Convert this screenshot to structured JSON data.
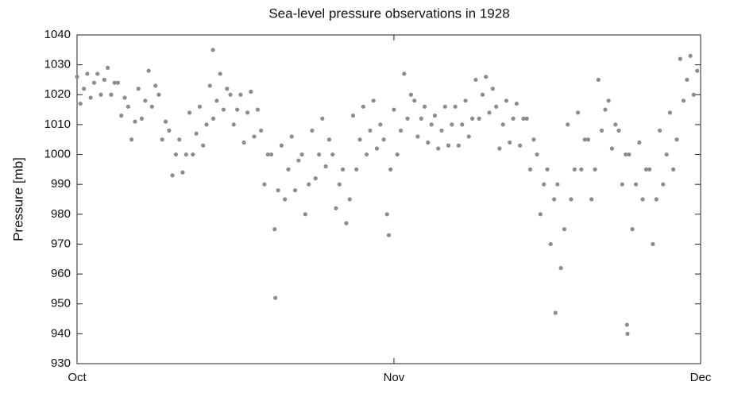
{
  "chart_data": {
    "type": "scatter",
    "title": "Sea-level pressure observations in 1928",
    "y_label": "Pressure [mb]",
    "color": "#8c8c8c",
    "grid": false,
    "xlim": [
      0,
      61
    ],
    "xticks": [
      {
        "value": 0,
        "label": "Oct"
      },
      {
        "value": 31,
        "label": "Nov"
      },
      {
        "value": 61,
        "label": "Dec"
      }
    ],
    "ylim": [
      930,
      1040
    ],
    "yticks": [
      930,
      940,
      950,
      960,
      970,
      980,
      990,
      1000,
      1010,
      1020,
      1030,
      1040
    ],
    "x": [
      0,
      0.33,
      0.67,
      1,
      1.33,
      1.67,
      2,
      2.33,
      2.67,
      3,
      3.33,
      3.67,
      4,
      4.33,
      4.67,
      5,
      5.33,
      5.67,
      6,
      6.33,
      6.67,
      7,
      7.33,
      7.67,
      8,
      8.33,
      8.67,
      9,
      9.33,
      9.67,
      10,
      10.33,
      10.67,
      11,
      11.33,
      11.67,
      12,
      12.33,
      12.67,
      13,
      13.33,
      13.67,
      14,
      14.33,
      14.67,
      15,
      15.33,
      15.67,
      16,
      16.33,
      16.67,
      17,
      17.33,
      17.67,
      18,
      18.33,
      18.67,
      19,
      19.33,
      19.67,
      20,
      20.33,
      20.67,
      21,
      21.33,
      21.67,
      22,
      22.33,
      22.67,
      23,
      23.33,
      23.67,
      24,
      24.33,
      24.67,
      25,
      25.33,
      25.67,
      26,
      26.33,
      26.67,
      27,
      27.33,
      27.67,
      28,
      28.33,
      28.67,
      29,
      29.33,
      29.67,
      30,
      30.33,
      30.67,
      31,
      31.33,
      31.67,
      32,
      32.33,
      32.67,
      33,
      33.33,
      33.67,
      34,
      34.33,
      34.67,
      35,
      35.33,
      35.67,
      36,
      36.33,
      36.67,
      37,
      37.33,
      37.67,
      38,
      38.33,
      38.67,
      39,
      39.33,
      39.67,
      40,
      40.33,
      40.67,
      41,
      41.33,
      41.67,
      42,
      42.33,
      42.67,
      43,
      43.33,
      43.67,
      44,
      44.33,
      44.67,
      45,
      45.33,
      45.67,
      46,
      46.33,
      46.67,
      47,
      47.33,
      47.67,
      48,
      48.33,
      48.67,
      49,
      49.33,
      49.67,
      50,
      50.33,
      50.67,
      51,
      51.33,
      51.67,
      52,
      52.33,
      52.67,
      53,
      53.33,
      53.67,
      54,
      54.33,
      54.67,
      55,
      55.33,
      55.67,
      56,
      56.33,
      56.67,
      57,
      57.33,
      57.67,
      58,
      58.33,
      58.67,
      59,
      59.33,
      59.67,
      60,
      60.33,
      60.67,
      13.3,
      19.4,
      46.8,
      53.8,
      53.85,
      30.5
    ],
    "values": [
      1026,
      1017,
      1022,
      1027,
      1019,
      1024,
      1027,
      1020,
      1025,
      1029,
      1020,
      1024,
      1024,
      1013,
      1019,
      1016,
      1005,
      1011,
      1022,
      1012,
      1018,
      1028,
      1016,
      1023,
      1020,
      1005,
      1011,
      1008,
      993,
      1000,
      1005,
      994,
      1000,
      1014,
      1000,
      1007,
      1016,
      1003,
      1010,
      1023,
      1012,
      1018,
      1027,
      1015,
      1022,
      1020,
      1010,
      1015,
      1020,
      1004,
      1014,
      1021,
      1006,
      1015,
      1008,
      990,
      1000,
      1000,
      975,
      988,
      1003,
      985,
      995,
      1006,
      988,
      998,
      1000,
      980,
      990,
      1008,
      992,
      1000,
      1012,
      996,
      1005,
      1000,
      982,
      990,
      995,
      977,
      985,
      1013,
      995,
      1005,
      1016,
      1000,
      1008,
      1018,
      1002,
      1010,
      1005,
      980,
      995,
      1015,
      1000,
      1008,
      1027,
      1012,
      1020,
      1018,
      1006,
      1012,
      1016,
      1004,
      1010,
      1013,
      1002,
      1008,
      1016,
      1003,
      1010,
      1016,
      1003,
      1010,
      1018,
      1006,
      1012,
      1025,
      1012,
      1020,
      1026,
      1014,
      1022,
      1016,
      1002,
      1010,
      1018,
      1004,
      1012,
      1017,
      1003,
      1012,
      1012,
      995,
      1005,
      1000,
      980,
      990,
      995,
      970,
      985,
      990,
      962,
      975,
      1010,
      985,
      995,
      1014,
      995,
      1005,
      1005,
      985,
      995,
      1025,
      1008,
      1015,
      1018,
      1002,
      1010,
      1008,
      990,
      1000,
      1000,
      975,
      990,
      1004,
      985,
      995,
      995,
      970,
      985,
      1008,
      990,
      1000,
      1014,
      995,
      1005,
      1032,
      1018,
      1025,
      1033,
      1020,
      1028,
      1035,
      952,
      947,
      943,
      940,
      973
    ]
  }
}
